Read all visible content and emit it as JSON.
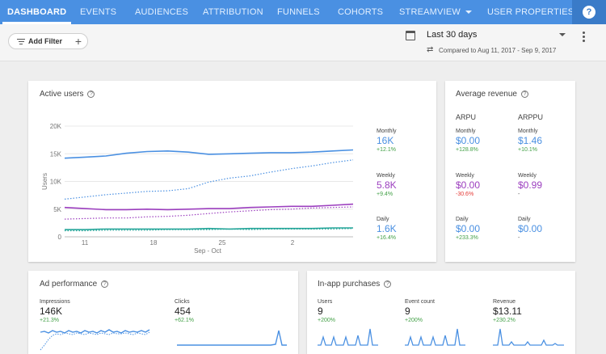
{
  "nav": {
    "tabs": [
      {
        "label": "DASHBOARD"
      },
      {
        "label": "EVENTS"
      },
      {
        "label": "AUDIENCES"
      },
      {
        "label": "ATTRIBUTION"
      },
      {
        "label": "FUNNELS"
      },
      {
        "label": "COHORTS"
      },
      {
        "label": "STREAMVIEW"
      },
      {
        "label": "USER PROPERTIES"
      }
    ],
    "help": "?"
  },
  "toolbar": {
    "filter_label": "Add Filter",
    "filter_plus": "+",
    "date_range": "Last 30 days",
    "compare_icon": "⇄",
    "compare_text": "Compared to Aug 11, 2017 - Sep 9, 2017"
  },
  "active_users": {
    "title": "Active users",
    "help": "?",
    "monthly": {
      "label": "Monthly",
      "value": "16K",
      "change": "+12.1%",
      "color": "#4a90e2"
    },
    "weekly": {
      "label": "Weekly",
      "value": "5.8K",
      "change": "+9.4%",
      "color": "#9c3fbf"
    },
    "daily": {
      "label": "Daily",
      "value": "1.6K",
      "change": "+16.4%",
      "color": "#26a69a"
    }
  },
  "chart_data": {
    "type": "line",
    "ylabel": "Users",
    "xlabel": "Sep - Oct",
    "ylim": [
      0,
      20000
    ],
    "y_ticks": [
      "0",
      "5K",
      "10K",
      "15K",
      "20K"
    ],
    "x_ticks": [
      "11",
      "18",
      "25",
      "2"
    ],
    "series": [
      {
        "name": "Monthly",
        "style": "solid",
        "color": "#4a90e2",
        "values": [
          14200,
          14400,
          14600,
          15100,
          15400,
          15500,
          15300,
          14900,
          15000,
          15100,
          15200,
          15200,
          15300,
          15500,
          15700
        ]
      },
      {
        "name": "Monthly",
        "style": "dotted",
        "color": "#4a90e2",
        "values": [
          6800,
          7200,
          7600,
          7900,
          8200,
          8300,
          8700,
          9900,
          10600,
          11000,
          11700,
          12300,
          12800,
          13400,
          13900
        ]
      },
      {
        "name": "Weekly",
        "style": "solid",
        "color": "#9c3fbf",
        "values": [
          5300,
          5100,
          4900,
          4900,
          5000,
          4900,
          5000,
          5100,
          5100,
          5300,
          5400,
          5500,
          5500,
          5700,
          5900
        ]
      },
      {
        "name": "Weekly",
        "style": "dotted",
        "color": "#9c3fbf",
        "values": [
          3200,
          3300,
          3400,
          3400,
          3600,
          3700,
          3900,
          4200,
          4500,
          4700,
          4900,
          5000,
          5200,
          5300,
          5400
        ]
      },
      {
        "name": "Daily",
        "style": "solid",
        "color": "#26a69a",
        "values": [
          1300,
          1300,
          1400,
          1400,
          1400,
          1400,
          1400,
          1500,
          1400,
          1500,
          1500,
          1500,
          1500,
          1600,
          1600
        ]
      },
      {
        "name": "Daily",
        "style": "dotted",
        "color": "#26a69a",
        "values": [
          1100,
          1100,
          1200,
          1200,
          1200,
          1300,
          1300,
          1300,
          1400,
          1300,
          1400,
          1400,
          1400,
          1400,
          1500
        ]
      }
    ]
  },
  "average_revenue": {
    "title": "Average revenue",
    "help": "?",
    "arpu_head": "ARPU",
    "arppu_head": "ARPPU",
    "arpu": {
      "monthly": {
        "label": "Monthly",
        "value": "$0.00",
        "change": "+128.8%"
      },
      "weekly": {
        "label": "Weekly",
        "value": "$0.00",
        "change": "-30.6%"
      },
      "daily": {
        "label": "Daily",
        "value": "$0.00",
        "change": "+233.3%"
      }
    },
    "arppu": {
      "monthly": {
        "label": "Monthly",
        "value": "$1.46",
        "change": "+10.1%"
      },
      "weekly": {
        "label": "Weekly",
        "value": "$0.99",
        "change": "-"
      },
      "daily": {
        "label": "Daily",
        "value": "$0.00",
        "change": "-"
      }
    }
  },
  "ad_performance": {
    "title": "Ad performance",
    "help": "?",
    "impressions": {
      "label": "Impressions",
      "value": "146K",
      "change": "+21.3%"
    },
    "clicks": {
      "label": "Clicks",
      "value": "454",
      "change": "+62.1%"
    }
  },
  "in_app_purchases": {
    "title": "In-app purchases",
    "help": "?",
    "users": {
      "label": "Users",
      "value": "9",
      "change": "+200%"
    },
    "event_count": {
      "label": "Event count",
      "value": "9",
      "change": "+200%"
    },
    "revenue": {
      "label": "Revenue",
      "value": "$13.11",
      "change": "+230.2%"
    }
  },
  "colors": {
    "nav_bg": "#4a90e2",
    "monthly": "#4a90e2",
    "weekly": "#9c3fbf",
    "daily": "#26a69a",
    "positive": "#43a047",
    "negative": "#e53935"
  }
}
